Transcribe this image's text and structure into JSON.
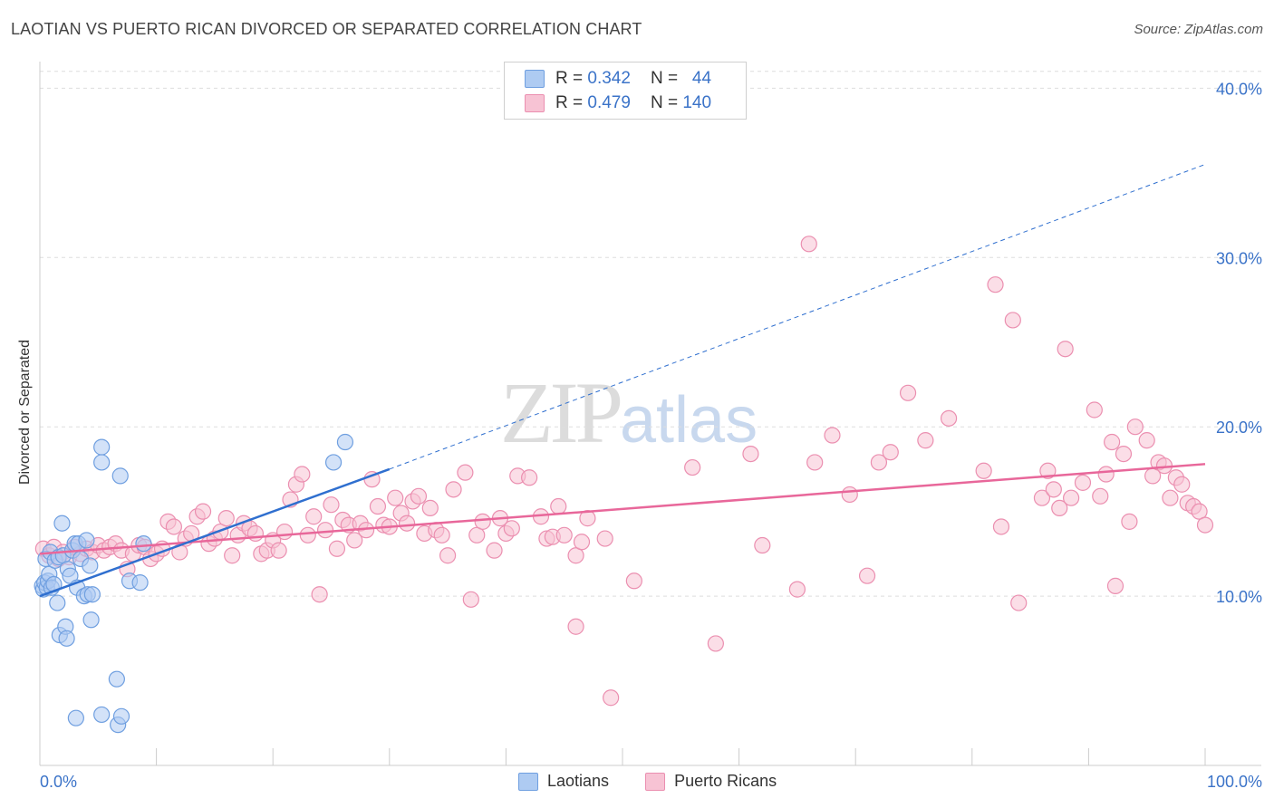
{
  "header": {
    "title": "LAOTIAN VS PUERTO RICAN DIVORCED OR SEPARATED CORRELATION CHART",
    "source": "Source: ZipAtlas.com"
  },
  "legend": {
    "rows": [
      {
        "r_label": "R = ",
        "r_value": "0.342",
        "n_label": "N = ",
        "n_value": "44"
      },
      {
        "r_label": "R = ",
        "r_value": "0.479",
        "n_label": "N = ",
        "n_value": "140"
      }
    ]
  },
  "watermark": {
    "zip": "ZIP",
    "atlas": "atlas"
  },
  "colors": {
    "laotian_fill": "#aecbf2",
    "laotian_stroke": "#6f9fe0",
    "laotian_line": "#2f6fcf",
    "pr_fill": "#f7c3d4",
    "pr_stroke": "#eb8fb0",
    "pr_line": "#e8679a",
    "grid": "#dddddd",
    "tick_label": "#3b73c8"
  },
  "chart_data": {
    "type": "scatter",
    "title": "LAOTIAN VS PUERTO RICAN DIVORCED OR SEPARATED CORRELATION CHART",
    "xlabel": "",
    "ylabel": "Divorced or Separated",
    "xlim": [
      0,
      100
    ],
    "ylim": [
      0,
      42
    ],
    "x_tick_labels": [
      "0.0%",
      "100.0%"
    ],
    "y_ticks": [
      10,
      20,
      30,
      40
    ],
    "y_tick_labels": [
      "10.0%",
      "20.0%",
      "30.0%",
      "40.0%"
    ],
    "grid": true,
    "legend_position": "top-center",
    "series": [
      {
        "name": "Laotians",
        "trend": {
          "x0": 0,
          "y0": 10.0,
          "x1": 30,
          "y1": 17.5,
          "dash_to_x": 100,
          "dash_to_y": 35.5
        },
        "points": [
          [
            0.2,
            10.6
          ],
          [
            0.3,
            10.4
          ],
          [
            0.4,
            10.8
          ],
          [
            0.5,
            12.2
          ],
          [
            0.6,
            10.5
          ],
          [
            0.7,
            10.9
          ],
          [
            0.8,
            11.3
          ],
          [
            0.9,
            12.6
          ],
          [
            1.0,
            10.5
          ],
          [
            1.2,
            10.7
          ],
          [
            1.3,
            12.1
          ],
          [
            1.5,
            9.6
          ],
          [
            1.6,
            12.3
          ],
          [
            1.7,
            7.7
          ],
          [
            1.9,
            14.3
          ],
          [
            2.0,
            12.4
          ],
          [
            2.2,
            8.2
          ],
          [
            2.3,
            7.5
          ],
          [
            2.4,
            11.6
          ],
          [
            2.6,
            11.2
          ],
          [
            2.8,
            12.7
          ],
          [
            3.0,
            13.1
          ],
          [
            3.2,
            10.5
          ],
          [
            3.3,
            13.1
          ],
          [
            3.1,
            2.8
          ],
          [
            3.5,
            12.2
          ],
          [
            3.8,
            10.0
          ],
          [
            4.0,
            13.3
          ],
          [
            4.1,
            10.1
          ],
          [
            4.3,
            11.8
          ],
          [
            4.5,
            10.1
          ],
          [
            4.4,
            8.6
          ],
          [
            5.3,
            18.8
          ],
          [
            5.3,
            17.9
          ],
          [
            5.3,
            3.0
          ],
          [
            6.6,
            5.1
          ],
          [
            6.7,
            2.4
          ],
          [
            6.9,
            17.1
          ],
          [
            7.0,
            2.9
          ],
          [
            7.7,
            10.9
          ],
          [
            8.6,
            10.8
          ],
          [
            8.9,
            13.1
          ],
          [
            25.2,
            17.9
          ],
          [
            26.2,
            19.1
          ]
        ]
      },
      {
        "name": "Puerto Ricans",
        "trend": {
          "x0": 0,
          "y0": 12.5,
          "x1": 100,
          "y1": 17.8
        },
        "points": [
          [
            0.3,
            12.8
          ],
          [
            0.8,
            12.4
          ],
          [
            1.2,
            12.9
          ],
          [
            1.6,
            12.2
          ],
          [
            2.0,
            12.6
          ],
          [
            2.5,
            12.3
          ],
          [
            3.0,
            12.9
          ],
          [
            3.5,
            12.5
          ],
          [
            4.0,
            12.8
          ],
          [
            4.5,
            12.6
          ],
          [
            5.0,
            13.0
          ],
          [
            5.5,
            12.7
          ],
          [
            6.0,
            12.9
          ],
          [
            6.5,
            13.1
          ],
          [
            7.0,
            12.7
          ],
          [
            7.5,
            11.6
          ],
          [
            8.0,
            12.5
          ],
          [
            8.5,
            13.0
          ],
          [
            9.0,
            12.9
          ],
          [
            9.5,
            12.2
          ],
          [
            10.0,
            12.5
          ],
          [
            10.5,
            12.8
          ],
          [
            11.0,
            14.4
          ],
          [
            11.5,
            14.1
          ],
          [
            12.0,
            12.6
          ],
          [
            12.5,
            13.4
          ],
          [
            13.0,
            13.7
          ],
          [
            13.5,
            14.7
          ],
          [
            14.0,
            15.0
          ],
          [
            14.5,
            13.1
          ],
          [
            15.0,
            13.4
          ],
          [
            15.5,
            13.8
          ],
          [
            16.0,
            14.6
          ],
          [
            16.5,
            12.4
          ],
          [
            17.0,
            13.6
          ],
          [
            17.5,
            14.3
          ],
          [
            18.0,
            14.0
          ],
          [
            18.5,
            13.7
          ],
          [
            19.0,
            12.5
          ],
          [
            19.5,
            12.7
          ],
          [
            20.0,
            13.3
          ],
          [
            20.5,
            12.7
          ],
          [
            21.0,
            13.8
          ],
          [
            21.5,
            15.7
          ],
          [
            22.0,
            16.6
          ],
          [
            22.5,
            17.2
          ],
          [
            23.0,
            13.6
          ],
          [
            23.5,
            14.7
          ],
          [
            24.0,
            10.1
          ],
          [
            24.5,
            13.9
          ],
          [
            25.0,
            15.4
          ],
          [
            25.5,
            12.8
          ],
          [
            26.0,
            14.5
          ],
          [
            26.5,
            14.2
          ],
          [
            27.0,
            13.3
          ],
          [
            27.5,
            14.3
          ],
          [
            28.0,
            13.9
          ],
          [
            28.5,
            16.9
          ],
          [
            29.0,
            15.3
          ],
          [
            29.5,
            14.2
          ],
          [
            30.0,
            14.1
          ],
          [
            30.5,
            15.8
          ],
          [
            31.0,
            14.9
          ],
          [
            31.5,
            14.3
          ],
          [
            32.0,
            15.6
          ],
          [
            32.5,
            15.9
          ],
          [
            33.0,
            13.7
          ],
          [
            33.5,
            15.2
          ],
          [
            34.0,
            13.9
          ],
          [
            34.5,
            13.6
          ],
          [
            35.0,
            12.4
          ],
          [
            35.5,
            16.3
          ],
          [
            36.5,
            17.3
          ],
          [
            37.0,
            9.8
          ],
          [
            37.5,
            13.6
          ],
          [
            38.0,
            14.4
          ],
          [
            39.0,
            12.7
          ],
          [
            39.5,
            14.6
          ],
          [
            40.0,
            13.7
          ],
          [
            40.5,
            14.0
          ],
          [
            41.0,
            17.1
          ],
          [
            42.0,
            17.0
          ],
          [
            43.0,
            14.7
          ],
          [
            43.5,
            13.4
          ],
          [
            44.0,
            13.5
          ],
          [
            44.5,
            15.3
          ],
          [
            45.0,
            13.6
          ],
          [
            46.0,
            12.4
          ],
          [
            46.5,
            13.2
          ],
          [
            46.0,
            8.2
          ],
          [
            47.0,
            14.6
          ],
          [
            48.5,
            13.4
          ],
          [
            49.0,
            4.0
          ],
          [
            51.0,
            10.9
          ],
          [
            56.0,
            17.6
          ],
          [
            58.0,
            7.2
          ],
          [
            61.0,
            18.4
          ],
          [
            65.0,
            10.4
          ],
          [
            66.0,
            30.8
          ],
          [
            66.5,
            17.9
          ],
          [
            68.0,
            19.5
          ],
          [
            69.5,
            16.0
          ],
          [
            71.0,
            11.2
          ],
          [
            72.0,
            17.9
          ],
          [
            73.0,
            18.5
          ],
          [
            74.5,
            22.0
          ],
          [
            76.0,
            19.2
          ],
          [
            78.0,
            20.5
          ],
          [
            81.0,
            17.4
          ],
          [
            82.0,
            28.4
          ],
          [
            82.5,
            14.1
          ],
          [
            83.5,
            26.3
          ],
          [
            84.0,
            9.6
          ],
          [
            86.0,
            15.8
          ],
          [
            86.5,
            17.4
          ],
          [
            87.0,
            16.3
          ],
          [
            87.5,
            15.2
          ],
          [
            88.0,
            24.6
          ],
          [
            88.5,
            15.8
          ],
          [
            89.5,
            16.7
          ],
          [
            90.5,
            21.0
          ],
          [
            91.0,
            15.9
          ],
          [
            91.5,
            17.2
          ],
          [
            92.0,
            19.1
          ],
          [
            92.3,
            10.6
          ],
          [
            93.0,
            18.4
          ],
          [
            93.5,
            14.4
          ],
          [
            94.0,
            20.0
          ],
          [
            95.0,
            19.2
          ],
          [
            95.5,
            17.1
          ],
          [
            96.0,
            17.9
          ],
          [
            96.5,
            17.7
          ],
          [
            97.0,
            15.8
          ],
          [
            97.5,
            17.0
          ],
          [
            98.0,
            16.6
          ],
          [
            98.5,
            15.5
          ],
          [
            99.0,
            15.3
          ],
          [
            99.5,
            15.0
          ],
          [
            100.0,
            14.2
          ],
          [
            62.0,
            13.0
          ]
        ]
      }
    ]
  },
  "bottom_legend": {
    "items": [
      "Laotians",
      "Puerto Ricans"
    ]
  }
}
